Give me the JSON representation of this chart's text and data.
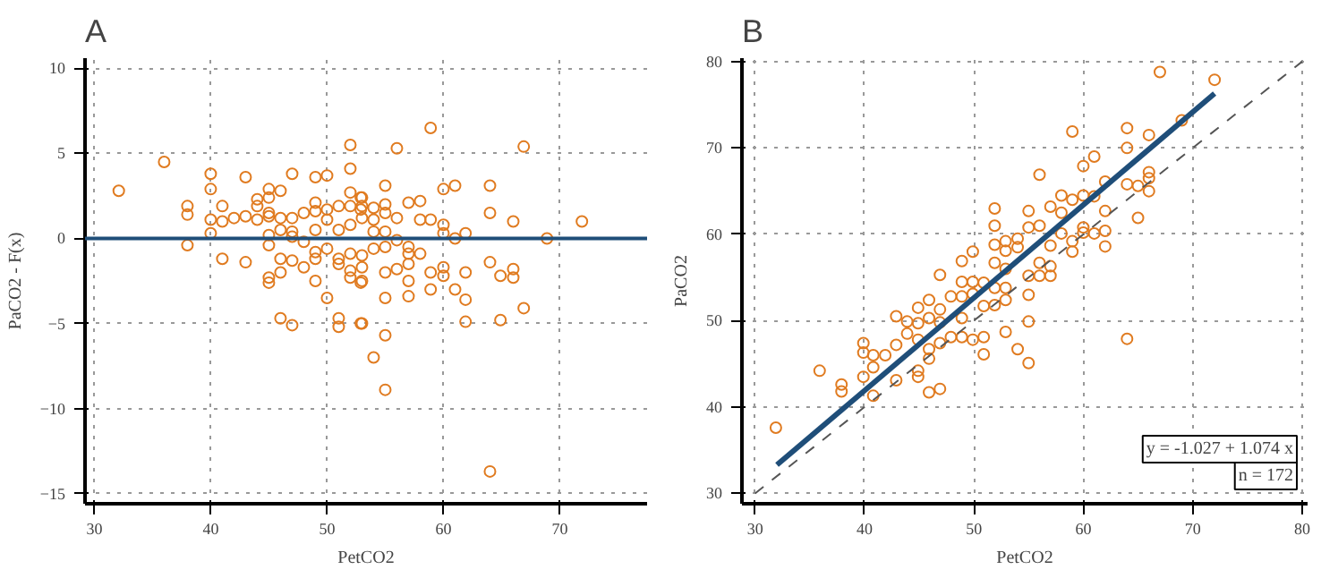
{
  "chart_data": [
    {
      "type": "scatter",
      "title": "A",
      "xlabel": "PetCO2",
      "ylabel": "PaCO2 - F(x)",
      "xlim": [
        29.2,
        77.5
      ],
      "ylim": [
        -15.6,
        10.6
      ],
      "xticks": [
        30,
        40,
        50,
        60,
        70
      ],
      "yticks": [
        -15,
        -10,
        -5,
        0,
        5,
        10
      ],
      "grid": true,
      "marker": "circle",
      "ref_lines": [
        {
          "axis": "y",
          "value": 0,
          "color": "#1f4e79",
          "line_style": "solid"
        }
      ],
      "series": [
        {
          "color": "#e07b20",
          "x": [
            32.1,
            36,
            38,
            38,
            38,
            40,
            40,
            40,
            40,
            41,
            41,
            41,
            42,
            43,
            43,
            43,
            44,
            44,
            44,
            45,
            45,
            45,
            45,
            45,
            45,
            45,
            45,
            46,
            46,
            46,
            46,
            46,
            46,
            47,
            47,
            47,
            47,
            47,
            47,
            48,
            48,
            48,
            49,
            49,
            49,
            49,
            49,
            49,
            49,
            50,
            50,
            50,
            50,
            50,
            51,
            51,
            51,
            51,
            51,
            51,
            52,
            52,
            52,
            52,
            52,
            52,
            52,
            52,
            52.9,
            52.9,
            52.9,
            52.9,
            53,
            53,
            53,
            53,
            53,
            53,
            53,
            54,
            54,
            54,
            54,
            54,
            55,
            55,
            55,
            55,
            55,
            55,
            55,
            55,
            55,
            56,
            56,
            56,
            56,
            57,
            57,
            57,
            57,
            57,
            57,
            58,
            58,
            58,
            58.9,
            58.9,
            58.9,
            58.9,
            60,
            60,
            60,
            60,
            60,
            61,
            61,
            61,
            61.9,
            61.9,
            61.9,
            61.9,
            64,
            64,
            64,
            64,
            64.9,
            64.9,
            66,
            66,
            66,
            66.9,
            66.9,
            68.9,
            71.9
          ],
          "values": [
            2.8,
            4.5,
            1.9,
            1.4,
            -0.4,
            3.8,
            2.9,
            1.1,
            0.3,
            1.9,
            -1.2,
            1.0,
            1.2,
            3.6,
            1.3,
            -1.4,
            2.3,
            1.9,
            1.1,
            2.9,
            2.4,
            1.5,
            1.3,
            0.2,
            -0.4,
            -2.3,
            -2.6,
            2.8,
            1.2,
            0.5,
            -1.2,
            -2.0,
            -4.7,
            3.8,
            1.2,
            0.4,
            0.1,
            -1.3,
            -5.1,
            1.5,
            -0.2,
            -1.7,
            3.6,
            2.1,
            1.6,
            0.5,
            -0.8,
            -1.2,
            -2.5,
            3.7,
            1.7,
            1.1,
            -0.6,
            -3.5,
            1.9,
            0.5,
            -1.2,
            -1.5,
            -4.7,
            -5.2,
            5.5,
            4.1,
            2.7,
            1.9,
            0.8,
            -0.9,
            -1.9,
            -2.3,
            2.4,
            1.7,
            -2.6,
            -5.0,
            2.4,
            1.9,
            1.2,
            -1.0,
            -1.7,
            -2.5,
            -5.0,
            1.8,
            1.1,
            0.4,
            -0.6,
            -7.0,
            3.1,
            2.0,
            1.5,
            0.4,
            -0.5,
            -2.0,
            -3.5,
            -5.7,
            -8.9,
            5.3,
            1.2,
            -0.1,
            -1.8,
            2.1,
            -0.5,
            -0.9,
            -1.5,
            -2.5,
            -3.4,
            2.2,
            1.1,
            -0.9,
            6.5,
            1.1,
            -2.0,
            -3.0,
            2.9,
            0.8,
            0.3,
            -1.7,
            -2.2,
            3.1,
            0,
            -3.0,
            0.3,
            -2.0,
            -3.6,
            -4.9,
            3.1,
            1.5,
            -1.4,
            -13.7,
            -2.2,
            -4.8,
            1.0,
            -1.8,
            -2.3,
            5.4,
            -4.1,
            0,
            1.0
          ]
        }
      ]
    },
    {
      "type": "scatter",
      "title": "B",
      "xlabel": "PetCO2",
      "ylabel": "PaCO2",
      "xlim": [
        28.8,
        80.5
      ],
      "ylim": [
        28.8,
        80.4
      ],
      "xticks": [
        30,
        40,
        50,
        60,
        70,
        80
      ],
      "yticks": [
        30,
        40,
        50,
        60,
        70,
        80
      ],
      "grid": true,
      "annotations": [
        "y = -1.027 + 1.074 x",
        "n = 172"
      ],
      "series": [
        {
          "color": "#e07b20",
          "marker": "circle",
          "x": [
            31.9,
            35.9,
            37.9,
            37.9,
            39.9,
            39.9,
            39.9,
            40.8,
            40.8,
            40.8,
            41.9,
            42.9,
            42.9,
            42.9,
            43.9,
            43.9,
            44.9,
            44.9,
            44.9,
            44.9,
            44.9,
            45.9,
            45.9,
            45.9,
            45.9,
            45.9,
            46.9,
            46.9,
            46.9,
            46.9,
            46.9,
            47.9,
            47.9,
            48.9,
            48.9,
            48.9,
            48.9,
            48.9,
            49.9,
            49.9,
            49.9,
            49.9,
            50.9,
            50.9,
            50.9,
            50.9,
            51.9,
            51.9,
            51.9,
            51.9,
            51.9,
            51.9,
            52.9,
            52.9,
            52.9,
            52.9,
            52.9,
            52.9,
            54,
            54,
            54,
            55,
            55,
            55,
            55,
            55,
            55,
            56,
            56,
            56,
            56,
            57,
            57,
            57,
            57,
            58,
            58,
            58,
            59,
            59,
            59,
            59,
            60,
            60,
            60,
            60,
            61,
            61,
            61,
            62,
            62,
            62,
            62,
            64,
            64,
            64,
            64,
            65,
            65,
            66,
            66,
            66,
            66,
            67,
            69,
            72
          ],
          "values": [
            37.6,
            44.2,
            42.6,
            41.8,
            47.4,
            46.3,
            43.5,
            46.0,
            44.6,
            41.3,
            46.0,
            50.5,
            47.2,
            43.1,
            49.9,
            48.5,
            51.5,
            49.7,
            47.8,
            44.2,
            43.5,
            52.4,
            50.3,
            46.7,
            45.6,
            41.7,
            55.3,
            51.3,
            49.8,
            47.4,
            42.1,
            52.8,
            48.1,
            56.9,
            54.5,
            52.8,
            50.3,
            48.1,
            58.0,
            54.5,
            53.1,
            47.8,
            54.4,
            51.7,
            48.1,
            46.1,
            63.0,
            61.0,
            58.8,
            56.7,
            53.8,
            51.8,
            59.2,
            58.1,
            56.0,
            53.8,
            52.4,
            48.7,
            59.5,
            58.5,
            46.7,
            62.7,
            60.8,
            55.2,
            53.0,
            49.9,
            45.1,
            66.9,
            61.0,
            56.7,
            55.2,
            63.2,
            58.7,
            56.3,
            55.2,
            64.5,
            62.5,
            60.1,
            71.9,
            64.0,
            59.2,
            58.0,
            67.9,
            64.5,
            60.8,
            60.2,
            69.0,
            64.4,
            60.1,
            66.1,
            62.7,
            60.4,
            58.6,
            72.3,
            70.0,
            65.8,
            47.9,
            65.6,
            61.9,
            71.5,
            67.2,
            66.5,
            65.0,
            78.8,
            73.2,
            77.9
          ]
        },
        {
          "type": "line",
          "color": "#1f4e79",
          "line_style": "solid",
          "x": [
            32,
            72
          ],
          "values": [
            33.3,
            76.3
          ]
        },
        {
          "type": "line",
          "color": "#555555",
          "line_style": "dashed",
          "x": [
            30,
            80
          ],
          "values": [
            30,
            80
          ]
        }
      ]
    }
  ]
}
